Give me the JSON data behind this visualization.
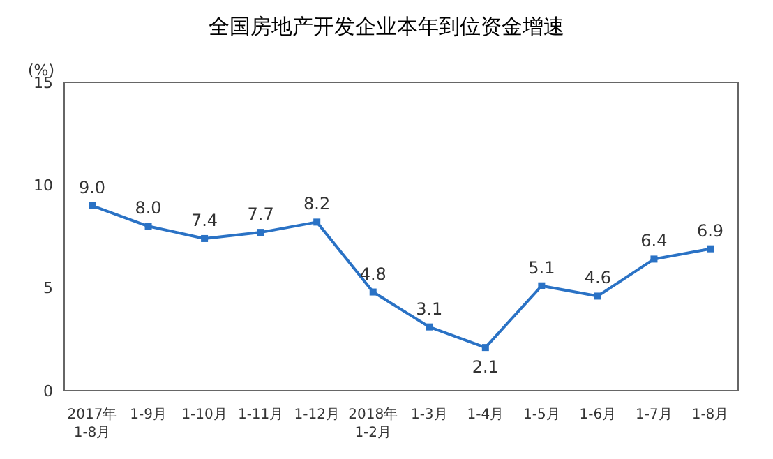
{
  "chart_data": {
    "type": "line",
    "title": "全国房地产开发企业本年到位资金增速",
    "ylabel": "(%)",
    "categories": [
      "2017年\n1-8月",
      "1-9月",
      "1-10月",
      "1-11月",
      "1-12月",
      "2018年\n1-2月",
      "1-3月",
      "1-4月",
      "1-5月",
      "1-6月",
      "1-7月",
      "1-8月"
    ],
    "series": [
      {
        "color": "#2a72c5",
        "values": [
          9.0,
          8.0,
          7.4,
          7.7,
          8.2,
          4.8,
          3.1,
          2.1,
          5.1,
          4.6,
          6.4,
          6.9
        ],
        "value_labels": [
          "9.0",
          "8.0",
          "7.4",
          "7.7",
          "8.2",
          "4.8",
          "3.1",
          "2.1",
          "5.1",
          "4.6",
          "6.4",
          "6.9"
        ]
      }
    ],
    "ylim": [
      0,
      15
    ],
    "yticks": [
      0,
      5,
      10,
      15
    ],
    "grid": false,
    "legend": false,
    "marker": "square",
    "line_style": "solid"
  }
}
